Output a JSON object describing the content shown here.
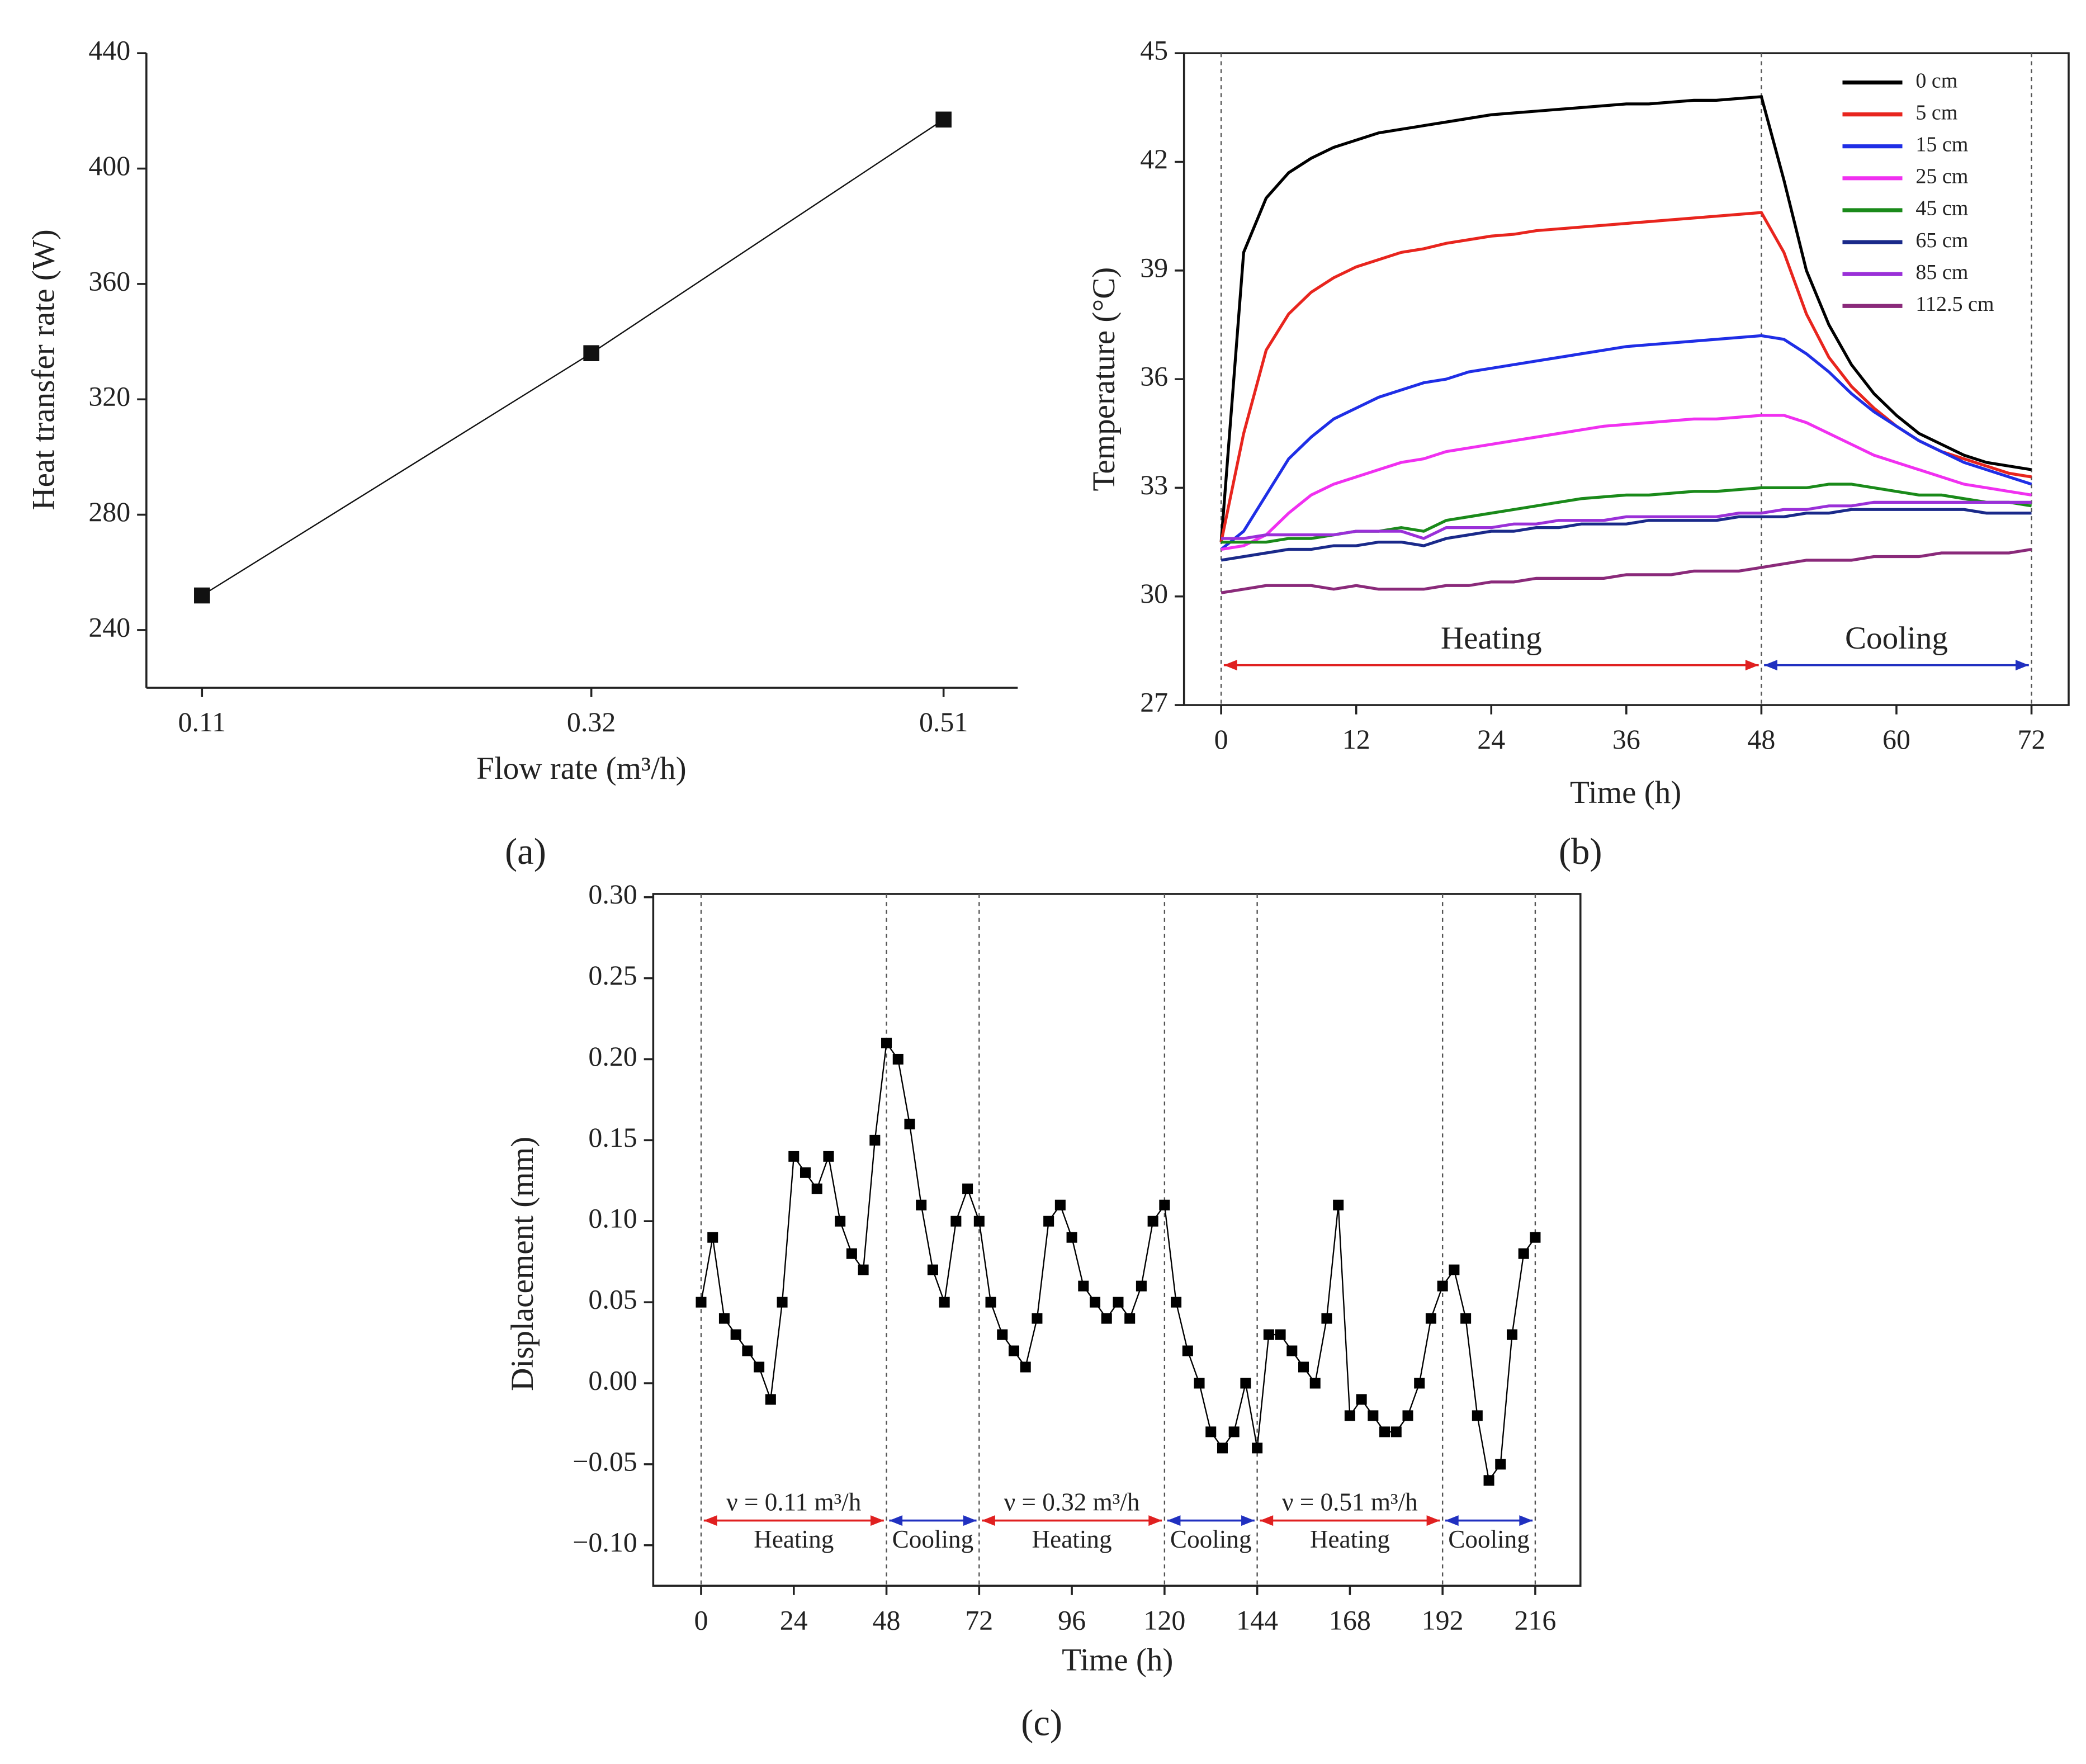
{
  "chart_data": [
    {
      "type": "line",
      "panel_label": "(a)",
      "xlabel": "Flow rate (m³/h)",
      "ylabel": "Heat transfer rate (W)",
      "x": [
        0.11,
        0.32,
        0.51
      ],
      "xlim": [
        0.08,
        0.55
      ],
      "xticks": [
        0.11,
        0.32,
        0.51
      ],
      "ylim": [
        220,
        440
      ],
      "yticks": [
        240,
        280,
        320,
        360,
        400,
        440
      ],
      "series": [
        {
          "color": "#111111",
          "marker": "square",
          "values": [
            252,
            336,
            417
          ]
        }
      ]
    },
    {
      "type": "line",
      "panel_label": "(b)",
      "xlabel": "Time (h)",
      "ylabel": "Temperature (°C)",
      "x": [
        0,
        2,
        4,
        6,
        8,
        10,
        12,
        14,
        16,
        18,
        20,
        22,
        24,
        26,
        28,
        30,
        32,
        34,
        36,
        38,
        40,
        42,
        44,
        46,
        48,
        50,
        52,
        54,
        56,
        58,
        60,
        62,
        64,
        66,
        68,
        70,
        72
      ],
      "xlim": [
        -3.3,
        75.3
      ],
      "xticks": [
        0,
        12,
        24,
        36,
        48,
        60,
        72
      ],
      "ylim": [
        27,
        45
      ],
      "yticks": [
        27,
        30,
        33,
        36,
        39,
        42,
        45
      ],
      "legend": "upper right",
      "vlines": [
        0,
        48,
        72
      ],
      "phases": [
        {
          "label": "Heating",
          "start": 0,
          "end": 48,
          "color": "#e02020"
        },
        {
          "label": "Cooling",
          "start": 48,
          "end": 72,
          "color": "#2030c0"
        }
      ],
      "series": [
        {
          "name": "0 cm",
          "color": "#000000",
          "values": [
            31.5,
            39.5,
            41.0,
            41.7,
            42.1,
            42.4,
            42.6,
            42.8,
            42.9,
            43.0,
            43.1,
            43.2,
            43.3,
            43.35,
            43.4,
            43.45,
            43.5,
            43.55,
            43.6,
            43.6,
            43.65,
            43.7,
            43.7,
            43.75,
            43.8,
            41.5,
            39.0,
            37.5,
            36.4,
            35.6,
            35.0,
            34.5,
            34.2,
            33.9,
            33.7,
            33.6,
            33.5
          ]
        },
        {
          "name": "5 cm",
          "color": "#e8251e",
          "values": [
            31.5,
            34.5,
            36.8,
            37.8,
            38.4,
            38.8,
            39.1,
            39.3,
            39.5,
            39.6,
            39.75,
            39.85,
            39.95,
            40.0,
            40.1,
            40.15,
            40.2,
            40.25,
            40.3,
            40.35,
            40.4,
            40.45,
            40.5,
            40.55,
            40.6,
            39.5,
            37.8,
            36.6,
            35.8,
            35.2,
            34.7,
            34.3,
            34.0,
            33.8,
            33.6,
            33.4,
            33.3
          ]
        },
        {
          "name": "15 cm",
          "color": "#1f2ee6",
          "values": [
            31.3,
            31.8,
            32.8,
            33.8,
            34.4,
            34.9,
            35.2,
            35.5,
            35.7,
            35.9,
            36.0,
            36.2,
            36.3,
            36.4,
            36.5,
            36.6,
            36.7,
            36.8,
            36.9,
            36.95,
            37.0,
            37.05,
            37.1,
            37.15,
            37.2,
            37.1,
            36.7,
            36.2,
            35.6,
            35.1,
            34.7,
            34.3,
            34.0,
            33.7,
            33.5,
            33.3,
            33.1
          ]
        },
        {
          "name": "25 cm",
          "color": "#f030f0",
          "values": [
            31.3,
            31.4,
            31.7,
            32.3,
            32.8,
            33.1,
            33.3,
            33.5,
            33.7,
            33.8,
            34.0,
            34.1,
            34.2,
            34.3,
            34.4,
            34.5,
            34.6,
            34.7,
            34.75,
            34.8,
            34.85,
            34.9,
            34.9,
            34.95,
            35.0,
            35.0,
            34.8,
            34.5,
            34.2,
            33.9,
            33.7,
            33.5,
            33.3,
            33.1,
            33.0,
            32.9,
            32.8
          ]
        },
        {
          "name": "45 cm",
          "color": "#1a8a1a",
          "values": [
            31.5,
            31.5,
            31.5,
            31.6,
            31.6,
            31.7,
            31.8,
            31.8,
            31.9,
            31.8,
            32.1,
            32.2,
            32.3,
            32.4,
            32.5,
            32.6,
            32.7,
            32.75,
            32.8,
            32.8,
            32.85,
            32.9,
            32.9,
            32.95,
            33.0,
            33.0,
            33.0,
            33.1,
            33.1,
            33.0,
            32.9,
            32.8,
            32.8,
            32.7,
            32.6,
            32.6,
            32.5
          ]
        },
        {
          "name": "65 cm",
          "color": "#1a2a8a",
          "values": [
            31.0,
            31.1,
            31.2,
            31.3,
            31.3,
            31.4,
            31.4,
            31.5,
            31.5,
            31.4,
            31.6,
            31.7,
            31.8,
            31.8,
            31.9,
            31.9,
            32.0,
            32.0,
            32.0,
            32.1,
            32.1,
            32.1,
            32.1,
            32.2,
            32.2,
            32.2,
            32.3,
            32.3,
            32.4,
            32.4,
            32.4,
            32.4,
            32.4,
            32.4,
            32.3,
            32.3,
            32.3
          ]
        },
        {
          "name": "85 cm",
          "color": "#9a30d8",
          "values": [
            31.6,
            31.6,
            31.7,
            31.7,
            31.7,
            31.7,
            31.8,
            31.8,
            31.8,
            31.6,
            31.9,
            31.9,
            31.9,
            32.0,
            32.0,
            32.1,
            32.1,
            32.1,
            32.2,
            32.2,
            32.2,
            32.2,
            32.2,
            32.3,
            32.3,
            32.4,
            32.4,
            32.5,
            32.5,
            32.6,
            32.6,
            32.6,
            32.6,
            32.6,
            32.6,
            32.6,
            32.6
          ]
        },
        {
          "name": "112.5 cm",
          "color": "#8a2a7a",
          "values": [
            30.1,
            30.2,
            30.3,
            30.3,
            30.3,
            30.2,
            30.3,
            30.2,
            30.2,
            30.2,
            30.3,
            30.3,
            30.4,
            30.4,
            30.5,
            30.5,
            30.5,
            30.5,
            30.6,
            30.6,
            30.6,
            30.7,
            30.7,
            30.7,
            30.8,
            30.9,
            31.0,
            31.0,
            31.0,
            31.1,
            31.1,
            31.1,
            31.2,
            31.2,
            31.2,
            31.2,
            31.3
          ]
        }
      ]
    },
    {
      "type": "line",
      "panel_label": "(c)",
      "xlabel": "Time (h)",
      "ylabel": "Displacement (mm)",
      "x": [
        0,
        3,
        6,
        9,
        12,
        15,
        18,
        21,
        24,
        27,
        30,
        33,
        36,
        39,
        42,
        45,
        48,
        51,
        54,
        57,
        60,
        63,
        66,
        69,
        72,
        75,
        78,
        81,
        84,
        87,
        90,
        93,
        96,
        99,
        102,
        105,
        108,
        111,
        114,
        117,
        120,
        123,
        126,
        129,
        132,
        135,
        138,
        141,
        144,
        147,
        150,
        153,
        156,
        159,
        162,
        165,
        168,
        171,
        174,
        177,
        180,
        183,
        186,
        189,
        192,
        195,
        198,
        201,
        204,
        207,
        210,
        213,
        216
      ],
      "xlim": [
        -12.4,
        227.7
      ],
      "xticks": [
        0,
        24,
        48,
        72,
        96,
        120,
        144,
        168,
        192,
        216
      ],
      "ylim": [
        -0.125,
        0.302
      ],
      "yticks": [
        {
          "value": -0.1,
          "label": "−0.10"
        },
        {
          "value": -0.05,
          "label": "−0.05"
        },
        {
          "value": 0,
          "label": "0.00"
        },
        0.05,
        {
          "value": 0.1,
          "label": "0.10"
        },
        0.15,
        {
          "value": 0.2,
          "label": "0.20"
        },
        0.25,
        {
          "value": 0.3,
          "label": "0.30"
        }
      ],
      "vlines": [
        0,
        48,
        72,
        120,
        144,
        192,
        216
      ],
      "phases": [
        {
          "label": "Heating",
          "start": 0,
          "end": 48,
          "color": "#e02020"
        },
        {
          "label": "Cooling",
          "start": 48,
          "end": 72,
          "color": "#2030c0"
        },
        {
          "label": "Heating",
          "start": 72,
          "end": 120,
          "color": "#e02020"
        },
        {
          "label": "Cooling",
          "start": 120,
          "end": 144,
          "color": "#2030c0"
        },
        {
          "label": "Heating",
          "start": 144,
          "end": 192,
          "color": "#e02020"
        },
        {
          "label": "Cooling",
          "start": 192,
          "end": 216,
          "color": "#2030c0"
        }
      ],
      "flow_labels": [
        {
          "text": "ν = 0.11 m³/h",
          "start": 0,
          "end": 48
        },
        {
          "text": "ν = 0.32 m³/h",
          "start": 72,
          "end": 120
        },
        {
          "text": "ν = 0.51 m³/h",
          "start": 144,
          "end": 192
        }
      ],
      "series": [
        {
          "color": "#000000",
          "marker": "square",
          "values": [
            0.05,
            0.09,
            0.04,
            0.03,
            0.02,
            0.01,
            -0.01,
            0.05,
            0.14,
            0.13,
            0.12,
            0.14,
            0.1,
            0.08,
            0.07,
            0.15,
            0.21,
            0.2,
            0.16,
            0.11,
            0.07,
            0.05,
            0.1,
            0.12,
            0.1,
            0.05,
            0.03,
            0.02,
            0.01,
            0.04,
            0.1,
            0.11,
            0.09,
            0.06,
            0.05,
            0.04,
            0.05,
            0.04,
            0.06,
            0.1,
            0.11,
            0.05,
            0.02,
            0.0,
            -0.03,
            -0.04,
            -0.03,
            0.0,
            -0.04,
            0.03,
            0.03,
            0.02,
            0.01,
            0.0,
            0.04,
            0.11,
            -0.02,
            -0.01,
            -0.02,
            -0.03,
            -0.03,
            -0.02,
            0.0,
            0.04,
            0.06,
            0.07,
            0.04,
            -0.02,
            -0.06,
            -0.05,
            0.03,
            0.08,
            0.09
          ]
        }
      ]
    }
  ]
}
